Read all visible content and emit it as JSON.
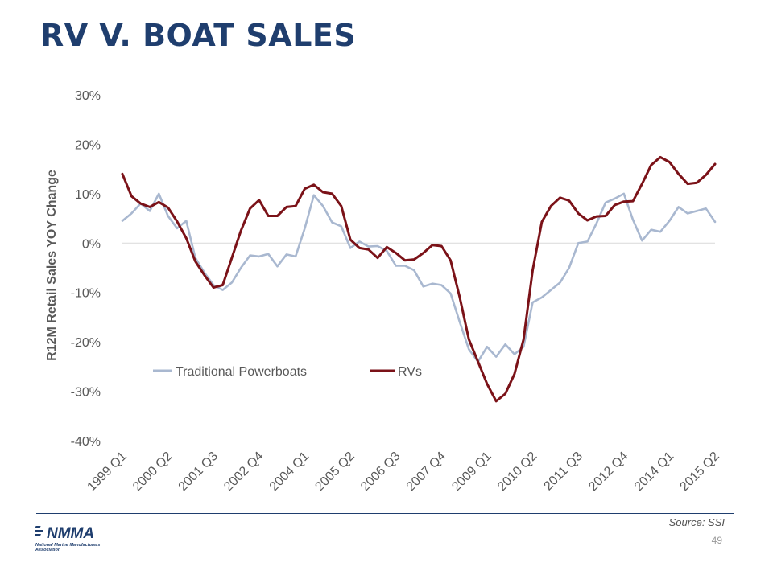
{
  "slide": {
    "title": "RV V. BOAT SALES",
    "source": "Source: SSI",
    "page_number": "49"
  },
  "logo": {
    "wordmark": "NMMA",
    "tagline": "National Marine Manufacturers Association"
  },
  "colors": {
    "title": "#1f3e6e",
    "powerboats": "#a9b8d0",
    "rvs": "#7b1218",
    "axis_text": "#595959",
    "zero_line": "#d9d9d9"
  },
  "chart_data": {
    "type": "line",
    "title": "",
    "xlabel": "",
    "ylabel": "R12M Retail Sales YOY Change",
    "ylim": [
      -40,
      30
    ],
    "y_ticks": [
      "30%",
      "20%",
      "10%",
      "0%",
      "-10%",
      "-20%",
      "-30%",
      "-40%"
    ],
    "y_tick_values": [
      30,
      20,
      10,
      0,
      -10,
      -20,
      -30,
      -40
    ],
    "x_tick_labels": [
      "1999 Q1",
      "2000 Q2",
      "2001 Q3",
      "2002 Q4",
      "2004 Q1",
      "2005 Q2",
      "2006 Q3",
      "2007 Q4",
      "2009 Q1",
      "2010 Q2",
      "2011 Q3",
      "2012 Q4",
      "2014 Q1",
      "2015 Q2"
    ],
    "x_tick_every": 5,
    "grid": false,
    "legend": "lower-left",
    "series": [
      {
        "name": "Traditional Powerboats",
        "values": [
          4.5,
          6,
          8,
          6.5,
          10,
          5.5,
          3,
          4.5,
          -3,
          -6,
          -8.5,
          -9.5,
          -8,
          -5,
          -2.5,
          -2.7,
          -2.2,
          -4.7,
          -2.3,
          -2.7,
          3,
          9.7,
          7.5,
          4.2,
          3.4,
          -1,
          0.3,
          -0.7,
          -0.6,
          -1.6,
          -4.6,
          -4.6,
          -5.5,
          -8.8,
          -8.2,
          -8.5,
          -10.2,
          -16,
          -21.5,
          -24,
          -21,
          -23,
          -20.5,
          -22.5,
          -21,
          -12,
          -11,
          -9.5,
          -8,
          -5,
          0,
          0.3,
          4,
          8.2,
          9,
          10,
          4.7,
          0.5,
          2.7,
          2.3,
          4.5,
          7.3,
          6,
          6.5,
          7,
          4.3
        ],
        "color": "#a9b8d0"
      },
      {
        "name": "RVs",
        "values": [
          14,
          9.5,
          8,
          7.3,
          8.3,
          7.2,
          4.4,
          1,
          -3.7,
          -6.5,
          -9,
          -8.5,
          -3,
          2.5,
          7,
          8.7,
          5.5,
          5.5,
          7.3,
          7.5,
          11,
          11.8,
          10.3,
          10,
          7.5,
          0.7,
          -1,
          -1.3,
          -3,
          -0.8,
          -2,
          -3.5,
          -3.3,
          -2,
          -0.4,
          -0.6,
          -3.5,
          -11,
          -19.5,
          -24,
          -28.5,
          -32,
          -30.5,
          -26.5,
          -19.5,
          -5.5,
          4.3,
          7.5,
          9.2,
          8.6,
          6,
          4.6,
          5.4,
          5.5,
          7.7,
          8.4,
          8.5,
          12,
          15.8,
          17.4,
          16.4,
          14,
          12,
          12.2,
          13.8,
          16
        ]
      }
    ]
  }
}
